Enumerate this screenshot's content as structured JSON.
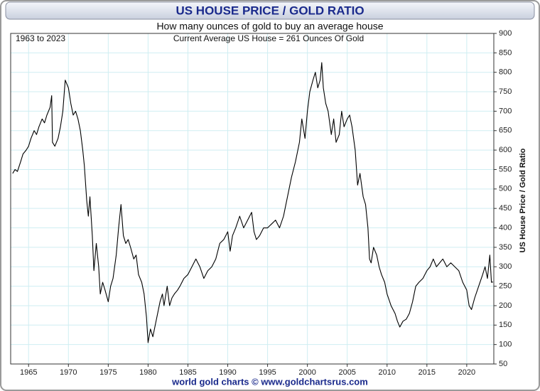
{
  "chart_data": {
    "type": "line",
    "title": "US HOUSE PRICE / GOLD RATIO",
    "subtitle": "How many ounces of gold to buy an average house",
    "annotations": [
      "1963 to 2023",
      "Current Average US House = 261 Ounces Of Gold"
    ],
    "footer": "world gold charts © www.goldchartsrus.com",
    "y_label": "US House Price / Gold Ratio",
    "x": [
      1963.0,
      1963.3,
      1963.6,
      1964.0,
      1964.3,
      1964.7,
      1965.0,
      1965.3,
      1965.7,
      1966.0,
      1966.3,
      1966.7,
      1967.0,
      1967.3,
      1967.7,
      1967.9,
      1968.0,
      1968.3,
      1968.7,
      1969.0,
      1969.3,
      1969.6,
      1969.8,
      1970.0,
      1970.3,
      1970.6,
      1970.9,
      1971.2,
      1971.5,
      1971.8,
      1972.0,
      1972.3,
      1972.5,
      1972.7,
      1973.0,
      1973.2,
      1973.5,
      1973.8,
      1974.0,
      1974.3,
      1974.6,
      1975.0,
      1975.3,
      1975.6,
      1976.0,
      1976.3,
      1976.6,
      1976.9,
      1977.2,
      1977.5,
      1977.8,
      1978.2,
      1978.5,
      1978.8,
      1979.2,
      1979.5,
      1979.8,
      1980.0,
      1980.3,
      1980.6,
      1980.9,
      1981.2,
      1981.5,
      1981.8,
      1982.0,
      1982.4,
      1982.7,
      1983.0,
      1983.3,
      1983.7,
      1984.0,
      1984.5,
      1985.0,
      1985.5,
      1986.0,
      1986.5,
      1987.0,
      1987.5,
      1988.0,
      1988.5,
      1989.0,
      1989.5,
      1990.0,
      1990.3,
      1990.6,
      1991.0,
      1991.5,
      1992.0,
      1992.5,
      1993.0,
      1993.3,
      1993.6,
      1994.0,
      1994.5,
      1995.0,
      1995.5,
      1996.0,
      1996.5,
      1997.0,
      1997.5,
      1998.0,
      1998.5,
      1999.0,
      1999.3,
      1999.7,
      2000.0,
      2000.3,
      2000.7,
      2001.0,
      2001.3,
      2001.6,
      2001.8,
      2002.0,
      2002.3,
      2002.6,
      2003.0,
      2003.3,
      2003.6,
      2004.0,
      2004.3,
      2004.6,
      2005.0,
      2005.3,
      2005.6,
      2006.0,
      2006.3,
      2006.6,
      2007.0,
      2007.3,
      2007.6,
      2007.8,
      2008.0,
      2008.3,
      2008.7,
      2009.0,
      2009.3,
      2009.7,
      2010.0,
      2010.5,
      2011.0,
      2011.3,
      2011.6,
      2012.0,
      2012.4,
      2012.8,
      2013.2,
      2013.6,
      2014.0,
      2014.5,
      2015.0,
      2015.4,
      2015.8,
      2016.2,
      2016.6,
      2017.0,
      2017.5,
      2018.0,
      2018.5,
      2019.0,
      2019.5,
      2020.0,
      2020.3,
      2020.6,
      2021.0,
      2021.5,
      2022.0,
      2022.3,
      2022.6,
      2022.9,
      2023.1,
      2023.3
    ],
    "series": [
      {
        "name": "US House Price / Gold Ratio",
        "color": "#000000",
        "values": [
          540,
          550,
          545,
          570,
          590,
          600,
          610,
          630,
          650,
          640,
          660,
          680,
          670,
          690,
          710,
          740,
          620,
          610,
          630,
          660,
          700,
          780,
          770,
          760,
          720,
          690,
          700,
          680,
          650,
          600,
          560,
          470,
          430,
          480,
          380,
          290,
          360,
          300,
          230,
          260,
          240,
          210,
          250,
          270,
          330,
          400,
          460,
          380,
          360,
          370,
          350,
          320,
          330,
          280,
          260,
          230,
          170,
          105,
          140,
          120,
          150,
          180,
          210,
          230,
          200,
          250,
          200,
          220,
          230,
          240,
          250,
          270,
          280,
          300,
          320,
          300,
          270,
          290,
          300,
          320,
          360,
          370,
          390,
          340,
          380,
          400,
          430,
          400,
          420,
          440,
          390,
          370,
          380,
          400,
          400,
          410,
          420,
          400,
          430,
          480,
          530,
          570,
          620,
          680,
          630,
          700,
          750,
          780,
          800,
          760,
          780,
          825,
          760,
          720,
          700,
          640,
          680,
          620,
          640,
          700,
          660,
          680,
          690,
          660,
          600,
          510,
          540,
          480,
          460,
          400,
          320,
          310,
          350,
          330,
          300,
          280,
          260,
          230,
          200,
          180,
          160,
          145,
          160,
          165,
          180,
          210,
          250,
          260,
          270,
          290,
          300,
          320,
          300,
          310,
          320,
          300,
          310,
          300,
          290,
          260,
          240,
          200,
          190,
          220,
          250,
          280,
          300,
          270,
          330,
          260,
          261
        ]
      }
    ],
    "xlim": [
      1962.75,
      2023.4
    ],
    "xticks": [
      1965,
      1970,
      1975,
      1980,
      1985,
      1990,
      1995,
      2000,
      2005,
      2010,
      2015,
      2020
    ],
    "ylim": [
      50,
      900
    ],
    "yticks": [
      50,
      100,
      150,
      200,
      250,
      300,
      350,
      400,
      450,
      500,
      550,
      600,
      650,
      700,
      750,
      800,
      850,
      900
    ],
    "grid": true
  }
}
